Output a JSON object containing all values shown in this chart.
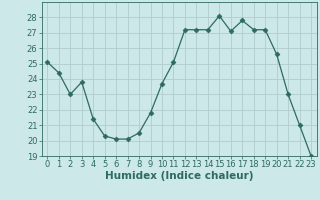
{
  "x": [
    0,
    1,
    2,
    3,
    4,
    5,
    6,
    7,
    8,
    9,
    10,
    11,
    12,
    13,
    14,
    15,
    16,
    17,
    18,
    19,
    20,
    21,
    22,
    23
  ],
  "y": [
    25.1,
    24.4,
    23.0,
    23.8,
    21.4,
    20.3,
    20.1,
    20.1,
    20.5,
    21.8,
    23.7,
    25.1,
    27.2,
    27.2,
    27.2,
    28.1,
    27.1,
    27.8,
    27.2,
    27.2,
    25.6,
    23.0,
    21.0,
    19.0
  ],
  "line_color": "#2e6b5e",
  "marker": "D",
  "marker_size": 2.5,
  "bg_color": "#cce8e8",
  "grid_color": "#b0cccc",
  "axis_color": "#2e6b5e",
  "xlabel": "Humidex (Indice chaleur)",
  "ylim": [
    19,
    29
  ],
  "xlim": [
    -0.5,
    23.5
  ],
  "yticks": [
    19,
    20,
    21,
    22,
    23,
    24,
    25,
    26,
    27,
    28
  ],
  "xticks": [
    0,
    1,
    2,
    3,
    4,
    5,
    6,
    7,
    8,
    9,
    10,
    11,
    12,
    13,
    14,
    15,
    16,
    17,
    18,
    19,
    20,
    21,
    22,
    23
  ],
  "tick_fontsize": 6,
  "xlabel_fontsize": 7.5
}
